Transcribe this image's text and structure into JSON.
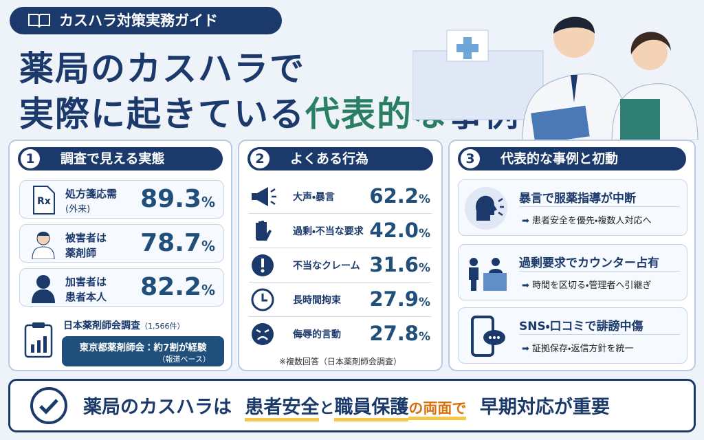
{
  "header": {
    "tag": "カスハラ対策実務ガイド",
    "title_line1": "薬局のカスハラで",
    "title_line2_a": "実際に起きている",
    "title_line2_b": "代表的な",
    "title_line2_c": "事例"
  },
  "sections": [
    {
      "number": "1",
      "title": "調査で見える実態",
      "cards": [
        {
          "label": "処方箋応需",
          "sublabel": "(外来)",
          "value": "89.3",
          "unit": "%"
        },
        {
          "label": "被害者は",
          "sublabel": "薬剤師",
          "value": "78.7",
          "unit": "%"
        },
        {
          "label": "加害者は",
          "sublabel": "患者本人",
          "value": "82.2",
          "unit": "%"
        }
      ],
      "source": "日本薬剤師会調査",
      "source_count": "（1,566件）",
      "highlight": "東京都薬剤師会：約7割が経験",
      "highlight_note": "（報道ベース）"
    },
    {
      "number": "2",
      "title": "よくある行為",
      "items": [
        {
          "label": "大声・暴言",
          "value": "62.2",
          "unit": "%"
        },
        {
          "label": "過剰・不当な要求",
          "value": "42.0",
          "unit": "%"
        },
        {
          "label": "不当なクレーム",
          "value": "31.6",
          "unit": "%"
        },
        {
          "label": "長時間拘束",
          "value": "27.9",
          "unit": "%"
        },
        {
          "label": "侮辱的言動",
          "value": "27.8",
          "unit": "%"
        }
      ],
      "note": "※複数回答（日本薬剤師会調査）"
    },
    {
      "number": "3",
      "title": "代表的な事例と初動",
      "cases": [
        {
          "title": "暴言で服薬指導が中断",
          "action": "患者安全を優先・複数人対応へ"
        },
        {
          "title": "過剰要求でカウンター占有",
          "action": "時間を区切る・管理者へ引継ぎ"
        },
        {
          "title": "SNS・口コミで誹謗中傷",
          "action": "証拠保存・返信方針を統一"
        }
      ]
    }
  ],
  "footer": {
    "part1": "薬局のカスハラは",
    "part2": "患者安全",
    "part3": "と",
    "part4": "職員保護",
    "part5": "の両面で",
    "part6": "早期対応が重要"
  }
}
